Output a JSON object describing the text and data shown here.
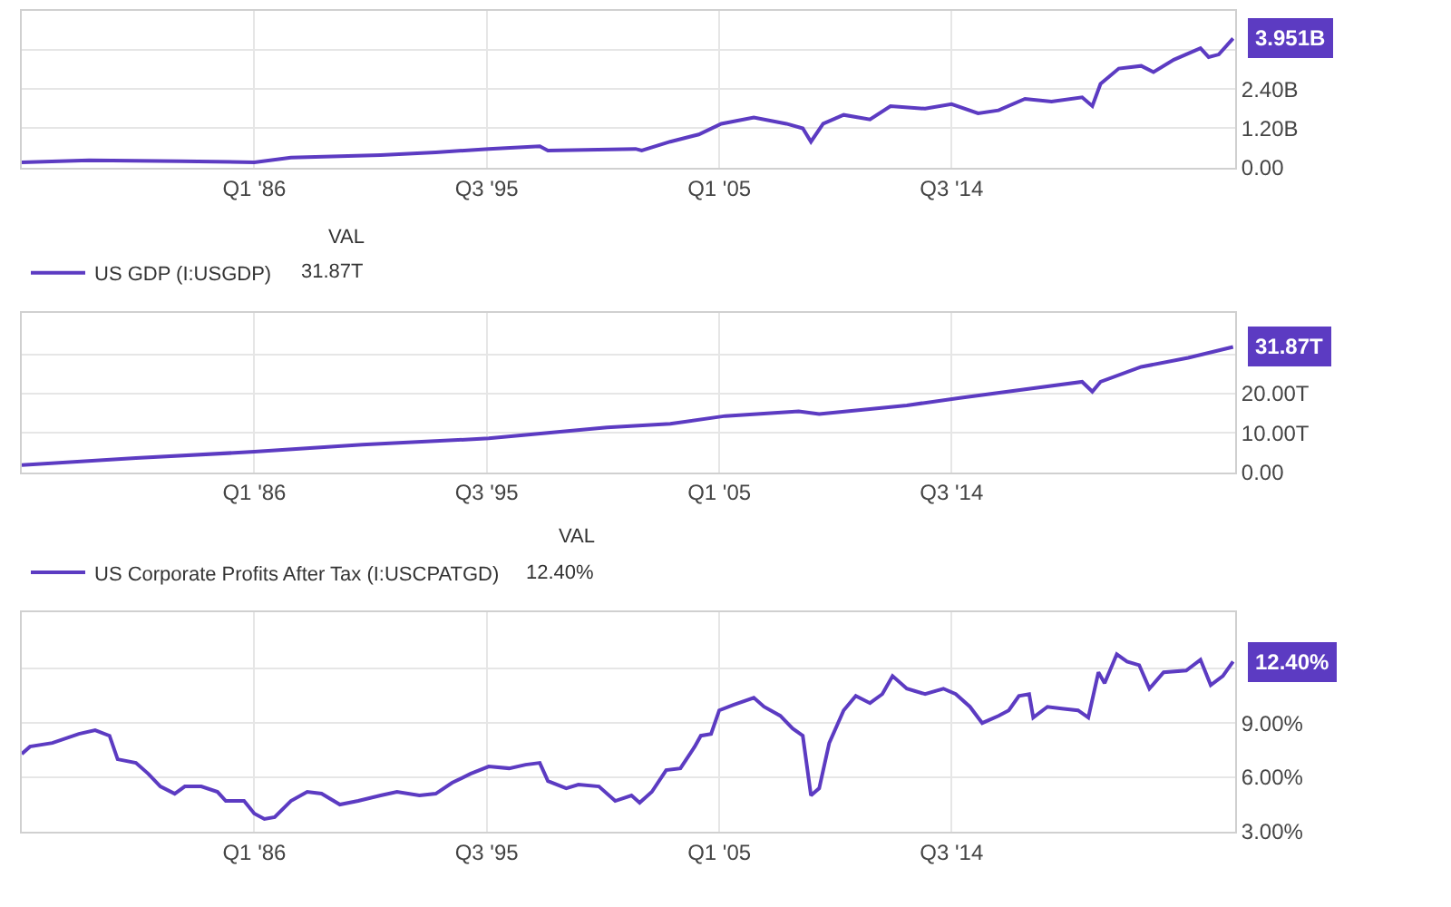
{
  "chart_data": [
    {
      "type": "line",
      "xlim": [
        "1976-07",
        "2026-02"
      ],
      "ylim": [
        -0.02,
        4.8
      ],
      "xticks": [
        {
          "value": "1986-01",
          "label": "Q1 '86"
        },
        {
          "value": "1995-07",
          "label": "Q3 '95"
        },
        {
          "value": "2005-01",
          "label": "Q1 '05"
        },
        {
          "value": "2014-07",
          "label": "Q3 '14"
        }
      ],
      "yticks": [
        {
          "value": 0,
          "label": "0.00"
        },
        {
          "value": 1.2,
          "label": "1.20B"
        },
        {
          "value": 2.4,
          "label": "2.40B"
        },
        {
          "value": 3.6,
          "label": null
        }
      ],
      "grid": true,
      "legend": false,
      "x": [
        "1976-07",
        "1979-04",
        "1983-01",
        "1986-01",
        "1987-07",
        "1991-03",
        "1993-06",
        "1995-08",
        "1997-09",
        "1998-01",
        "2001-08",
        "2001-11",
        "2003-01",
        "2004-03",
        "2005-02",
        "2006-06",
        "2007-10",
        "2008-06",
        "2008-10",
        "2009-04",
        "2010-02",
        "2011-03",
        "2012-01",
        "2013-06",
        "2014-07",
        "2015-08",
        "2016-06",
        "2017-07",
        "2018-08",
        "2019-11",
        "2020-04",
        "2020-08",
        "2021-05",
        "2022-04",
        "2022-10",
        "2023-08",
        "2024-09",
        "2025-01",
        "2025-06",
        "2026-01"
      ],
      "series": [
        {
          "color": "#5c3bc2",
          "values": [
            0.16,
            0.22,
            0.19,
            0.16,
            0.3,
            0.38,
            0.46,
            0.57,
            0.65,
            0.52,
            0.57,
            0.52,
            0.79,
            1.01,
            1.34,
            1.53,
            1.34,
            1.2,
            0.79,
            1.34,
            1.61,
            1.47,
            1.88,
            1.8,
            1.94,
            1.66,
            1.75,
            2.1,
            2.02,
            2.15,
            1.88,
            2.56,
            3.03,
            3.11,
            2.92,
            3.3,
            3.65,
            3.38,
            3.46,
            3.951
          ],
          "value_labels": [
            null,
            null,
            null,
            null,
            null,
            null,
            null,
            null,
            null,
            null,
            null,
            null,
            null,
            null,
            null,
            null,
            null,
            null,
            null,
            null,
            null,
            null,
            null,
            null,
            null,
            null,
            null,
            null,
            null,
            null,
            null,
            null,
            null,
            null,
            null,
            null,
            null,
            null,
            null,
            "3.951B"
          ]
        }
      ]
    },
    {
      "type": "line",
      "xlim": [
        "1976-07",
        "2026-02"
      ],
      "ylim": [
        0,
        40.5
      ],
      "xticks": [
        {
          "value": "1986-01",
          "label": "Q1 '86"
        },
        {
          "value": "1995-07",
          "label": "Q3 '95"
        },
        {
          "value": "2005-01",
          "label": "Q1 '05"
        },
        {
          "value": "2014-07",
          "label": "Q3 '14"
        }
      ],
      "yticks": [
        {
          "value": 0,
          "label": "0.00"
        },
        {
          "value": 10,
          "label": "10.00T"
        },
        {
          "value": 20,
          "label": "20.00T"
        },
        {
          "value": 30,
          "label": null
        }
      ],
      "grid": true,
      "legend": "top left",
      "annotations": [
        "VAL",
        "31.87T"
      ],
      "x": [
        "1976-07",
        "1981-03",
        "1986-01",
        "1990-06",
        "1995-08",
        "2000-06",
        "2003-01",
        "2005-04",
        "2008-04",
        "2009-02",
        "2012-09",
        "2014-11",
        "2017-07",
        "2019-11",
        "2020-04",
        "2020-08",
        "2022-04",
        "2024-03",
        "2026-01"
      ],
      "series": [
        {
          "name": "US GDP (I:USGDP)",
          "color": "#5c3bc2",
          "values": [
            1.8,
            3.6,
            5.2,
            7.0,
            8.6,
            11.4,
            12.3,
            14.3,
            15.5,
            14.8,
            17.0,
            18.9,
            21.1,
            23.0,
            20.5,
            23.0,
            26.8,
            29.1,
            31.87
          ],
          "value_labels": [
            null,
            null,
            null,
            null,
            null,
            null,
            null,
            null,
            null,
            null,
            null,
            null,
            null,
            null,
            null,
            null,
            null,
            null,
            "31.87T"
          ]
        }
      ]
    },
    {
      "type": "line",
      "xlim": [
        "1976-07",
        "2026-02"
      ],
      "ylim": [
        3,
        15.1
      ],
      "xticks": [
        {
          "value": "1986-01",
          "label": "Q1 '86"
        },
        {
          "value": "1995-07",
          "label": "Q3 '95"
        },
        {
          "value": "2005-01",
          "label": "Q1 '05"
        },
        {
          "value": "2014-07",
          "label": "Q3 '14"
        }
      ],
      "yticks": [
        {
          "value": 3,
          "label": "3.00%"
        },
        {
          "value": 6,
          "label": "6.00%"
        },
        {
          "value": 9,
          "label": "9.00%"
        },
        {
          "value": 12,
          "label": null
        }
      ],
      "grid": true,
      "legend": "top left",
      "annotations": [
        "VAL",
        "12.40%"
      ],
      "x": [
        "1976-07",
        "1976-11",
        "1977-10",
        "1978-11",
        "1979-07",
        "1980-02",
        "1980-06",
        "1981-03",
        "1981-09",
        "1982-03",
        "1982-10",
        "1983-03",
        "1983-11",
        "1984-07",
        "1984-11",
        "1985-08",
        "1986-01",
        "1986-06",
        "1986-11",
        "1987-07",
        "1988-03",
        "1988-10",
        "1989-07",
        "1990-04",
        "1991-03",
        "1991-11",
        "1992-10",
        "1993-06",
        "1994-02",
        "1994-11",
        "1995-08",
        "1996-06",
        "1997-02",
        "1997-09",
        "1998-01",
        "1998-10",
        "1999-04",
        "2000-02",
        "2000-10",
        "2001-06",
        "2001-10",
        "2002-04",
        "2002-11",
        "2003-06",
        "2004-01",
        "2004-04",
        "2004-09",
        "2005-01",
        "2005-08",
        "2006-06",
        "2006-11",
        "2007-07",
        "2008-01",
        "2008-06",
        "2008-10",
        "2009-02",
        "2009-07",
        "2010-02",
        "2010-08",
        "2011-03",
        "2011-09",
        "2012-02",
        "2012-09",
        "2013-06",
        "2014-03",
        "2014-09",
        "2015-04",
        "2015-10",
        "2016-06",
        "2016-11",
        "2017-04",
        "2017-09",
        "2017-11",
        "2018-06",
        "2019-01",
        "2019-09",
        "2020-02",
        "2020-07",
        "2020-10",
        "2021-04",
        "2021-09",
        "2022-03",
        "2022-08",
        "2023-03",
        "2024-02",
        "2024-09",
        "2025-02",
        "2025-08",
        "2026-01"
      ],
      "series": [
        {
          "name": "US Corporate Profits After Tax (I:USCPATGD)",
          "color": "#5c3bc2",
          "values": [
            7.3,
            7.7,
            7.9,
            8.4,
            8.6,
            8.3,
            7.0,
            6.8,
            6.2,
            5.5,
            5.1,
            5.5,
            5.5,
            5.2,
            4.7,
            4.7,
            4.0,
            3.7,
            3.8,
            4.7,
            5.2,
            5.1,
            4.5,
            4.7,
            5.0,
            5.2,
            5.0,
            5.1,
            5.7,
            6.2,
            6.6,
            6.5,
            6.7,
            6.8,
            5.8,
            5.4,
            5.6,
            5.5,
            4.7,
            5.0,
            4.6,
            5.2,
            6.4,
            6.5,
            7.7,
            8.3,
            8.4,
            9.7,
            10.0,
            10.4,
            9.9,
            9.4,
            8.7,
            8.3,
            5.0,
            5.4,
            7.9,
            9.7,
            10.5,
            10.1,
            10.6,
            11.6,
            10.9,
            10.6,
            10.9,
            10.6,
            9.9,
            9.0,
            9.4,
            9.7,
            10.5,
            10.6,
            9.3,
            9.9,
            9.8,
            9.7,
            9.3,
            11.8,
            11.2,
            12.8,
            12.4,
            12.2,
            10.9,
            11.8,
            11.9,
            12.5,
            11.1,
            11.6,
            12.4
          ],
          "value_labels": [
            null,
            null,
            null,
            null,
            null,
            null,
            null,
            null,
            null,
            null,
            null,
            null,
            null,
            null,
            null,
            null,
            null,
            null,
            null,
            null,
            null,
            null,
            null,
            null,
            null,
            null,
            null,
            null,
            null,
            null,
            null,
            null,
            null,
            null,
            null,
            null,
            null,
            null,
            null,
            null,
            null,
            null,
            null,
            null,
            null,
            null,
            null,
            null,
            null,
            null,
            null,
            null,
            null,
            null,
            null,
            null,
            null,
            null,
            null,
            null,
            null,
            null,
            null,
            null,
            null,
            null,
            null,
            null,
            null,
            null,
            null,
            null,
            null,
            null,
            null,
            null,
            null,
            null,
            null,
            null,
            null,
            null,
            null,
            null,
            null,
            null,
            null,
            null,
            "12.40%"
          ]
        }
      ]
    }
  ]
}
